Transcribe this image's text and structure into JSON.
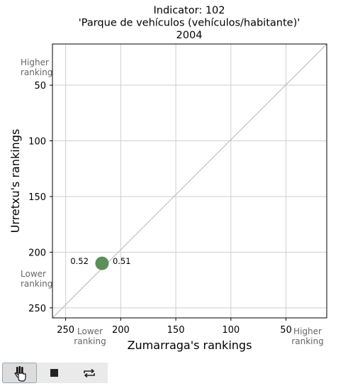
{
  "chart_data": {
    "type": "scatter",
    "title_lines": [
      "Indicator: 102",
      "'Parque de vehículos (vehículos/habitante)'",
      "2004"
    ],
    "xlabel": "Zumarraga's rankings",
    "ylabel": "Urretxu's rankings",
    "x_reversed": true,
    "y_reversed": true,
    "xlim": [
      262,
      13
    ],
    "ylim": [
      13,
      259
    ],
    "xticks": [
      250,
      200,
      150,
      100,
      50
    ],
    "yticks": [
      50,
      100,
      150,
      200,
      250
    ],
    "grid": true,
    "diagonal": true,
    "x_hint_low": [
      "Lower",
      "ranking"
    ],
    "x_hint_high": [
      "Higher",
      "ranking"
    ],
    "y_hint_high": [
      "Higher",
      "ranking"
    ],
    "y_hint_low": [
      "Lower",
      "ranking"
    ],
    "points": [
      {
        "x": 217,
        "y": 210,
        "left_label": "0.52",
        "right_label": "0.51",
        "color": "#5a8f5a"
      }
    ]
  },
  "toolbar": {
    "buttons": [
      {
        "name": "pan-button",
        "icon": "pan-hand-icon",
        "active": true
      },
      {
        "name": "stop-button",
        "icon": "stop-square-icon",
        "active": false
      },
      {
        "name": "repeat-button",
        "icon": "repeat-arrows-icon",
        "active": false
      }
    ]
  }
}
